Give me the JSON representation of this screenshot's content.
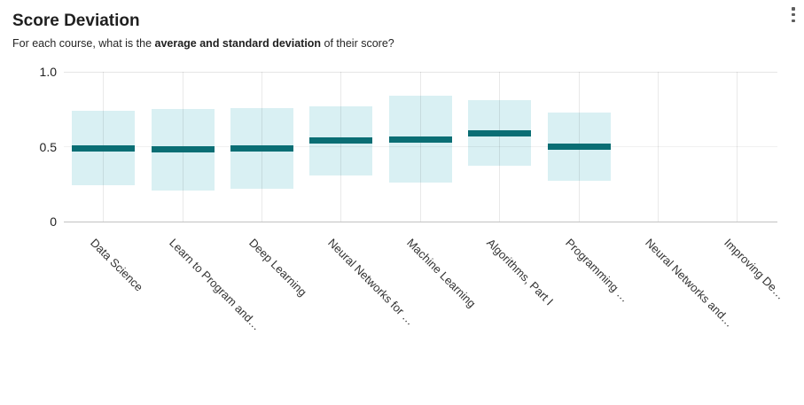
{
  "header": {
    "title": "Score Deviation",
    "subtitle": {
      "prefix": "For each course, what is the ",
      "bold": "average and standard deviation",
      "suffix": " of their score?"
    },
    "menu_icon": "kebab-menu-icon"
  },
  "chart_data": {
    "type": "bar",
    "variant": "mean-with-std-deviation-range",
    "title": "Score Deviation",
    "xlabel": "",
    "ylabel": "",
    "ylim": [
      0,
      1
    ],
    "grid": true,
    "legend": "none",
    "yticks": [
      {
        "value": 1.0,
        "label": "1.0"
      },
      {
        "value": 0.5,
        "label": "0.5"
      },
      {
        "value": 0.0,
        "label": "0"
      }
    ],
    "categories": [
      "Data Science",
      "Learn to Program and…",
      "Deep Learning",
      "Neural Networks for …",
      "Machine Learning",
      "Algorithms, Part I",
      "Programming …",
      "Neural Networks and…",
      "Improving De…"
    ],
    "series": [
      {
        "name": "average",
        "values": [
          0.49,
          0.48,
          0.49,
          0.54,
          0.55,
          0.59,
          0.5,
          null,
          null
        ]
      },
      {
        "name": "standard_deviation",
        "values": [
          0.25,
          0.27,
          0.27,
          0.23,
          0.29,
          0.22,
          0.23,
          null,
          null
        ]
      }
    ],
    "colors": {
      "range_fill": "#d9f0f3",
      "mean_line": "#0a6e74"
    }
  }
}
